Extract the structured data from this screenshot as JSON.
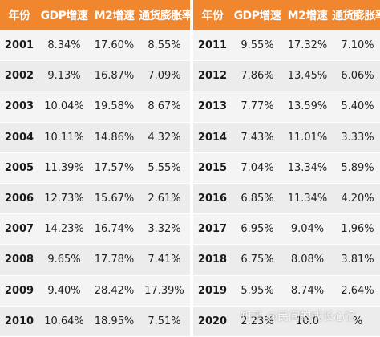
{
  "header": {
    "left": [
      "年份",
      "GDP增速",
      "M2增速",
      "通货膨胀率"
    ],
    "right": [
      "年份",
      "GDP增速",
      "M2增速",
      "通货膨胀率"
    ]
  },
  "rows": [
    {
      "l": [
        "2001",
        "8.34%",
        "17.60%",
        "8.55%"
      ],
      "r": [
        "2011",
        "9.55%",
        "17.32%",
        "7.10%"
      ]
    },
    {
      "l": [
        "2002",
        "9.13%",
        "16.87%",
        "7.09%"
      ],
      "r": [
        "2012",
        "7.86%",
        "13.45%",
        "6.06%"
      ]
    },
    {
      "l": [
        "2003",
        "10.04%",
        "19.58%",
        "8.67%"
      ],
      "r": [
        "2013",
        "7.77%",
        "13.59%",
        "5.40%"
      ]
    },
    {
      "l": [
        "2004",
        "10.11%",
        "14.86%",
        "4.32%"
      ],
      "r": [
        "2014",
        "7.43%",
        "11.01%",
        "3.33%"
      ]
    },
    {
      "l": [
        "2005",
        "11.39%",
        "17.57%",
        "5.55%"
      ],
      "r": [
        "2015",
        "7.04%",
        "13.34%",
        "5.89%"
      ]
    },
    {
      "l": [
        "2006",
        "12.73%",
        "15.67%",
        "2.61%"
      ],
      "r": [
        "2016",
        "6.85%",
        "11.34%",
        "4.20%"
      ]
    },
    {
      "l": [
        "2007",
        "14.23%",
        "16.74%",
        "3.32%"
      ],
      "r": [
        "2017",
        "6.95%",
        "9.04%",
        "1.96%"
      ]
    },
    {
      "l": [
        "2008",
        "9.65%",
        "17.78%",
        "7.41%"
      ],
      "r": [
        "2018",
        "6.75%",
        "8.08%",
        "3.81%"
      ]
    },
    {
      "l": [
        "2009",
        "9.40%",
        "28.42%",
        "17.39%"
      ],
      "r": [
        "2019",
        "5.95%",
        "8.74%",
        "2.64%"
      ]
    },
    {
      "l": [
        "2010",
        "10.64%",
        "18.95%",
        "7.51%"
      ],
      "r": [
        "2020",
        "2.23%",
        "10.0",
        "%"
      ]
    }
  ],
  "watermark": "知乎 @民间的成长心忆",
  "colors": {
    "header_bg": "#f0862e",
    "header_text": "#ffffff",
    "row_odd": "#f4f4f4",
    "row_even": "#ececec"
  }
}
